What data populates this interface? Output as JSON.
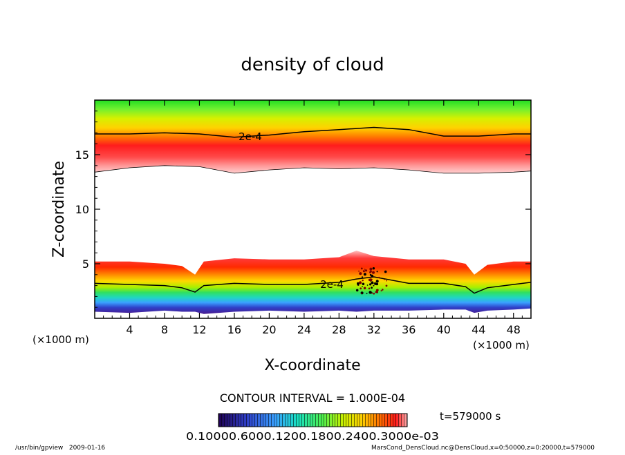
{
  "chart_data": {
    "type": "heatmap",
    "title": "density of cloud",
    "xlabel": "X-coordinate",
    "ylabel": "Z-coordinate",
    "x_unit": "(×1000 m)",
    "y_unit": "(×1000 m)",
    "xlim": [
      0,
      50
    ],
    "ylim": [
      0,
      20
    ],
    "x_ticks": [
      4,
      8,
      12,
      16,
      20,
      24,
      28,
      32,
      36,
      40,
      44,
      48
    ],
    "y_ticks": [
      5,
      10,
      15
    ],
    "contour_interval_label": "CONTOUR INTERVAL = 1.000E-04",
    "contour_label": "2e-4",
    "time_label": "t=579000 s",
    "colorbar_labels_text": "0.10000.6000.1200.1800.2400.3000e-03",
    "upper_layer": {
      "x": [
        0,
        4,
        8,
        12,
        16,
        20,
        24,
        28,
        32,
        36,
        40,
        44,
        48,
        50
      ],
      "top_z": [
        19.7,
        19.7,
        19.7,
        19.7,
        19.7,
        19.7,
        19.7,
        19.7,
        19.7,
        19.7,
        19.7,
        19.7,
        19.7,
        19.7
      ],
      "bottom_z": [
        13.4,
        13.8,
        14.0,
        13.9,
        13.3,
        13.6,
        13.8,
        13.7,
        13.8,
        13.6,
        13.3,
        13.3,
        13.4,
        13.5
      ],
      "contour_2e4_z": [
        16.9,
        16.9,
        17.0,
        16.9,
        16.6,
        16.8,
        17.1,
        17.3,
        17.5,
        17.3,
        16.7,
        16.7,
        16.9,
        16.9
      ]
    },
    "lower_layer": {
      "x": [
        0,
        4,
        8,
        10,
        11.5,
        12.5,
        16,
        20,
        24,
        28,
        30,
        32,
        36,
        40,
        42.5,
        43.5,
        45,
        48,
        50
      ],
      "top_z": [
        5.2,
        5.2,
        5.0,
        4.8,
        4.0,
        5.2,
        5.5,
        5.4,
        5.4,
        5.6,
        6.2,
        5.7,
        5.4,
        5.4,
        5.0,
        4.0,
        4.9,
        5.2,
        5.2
      ],
      "bottom_z": [
        0.6,
        0.5,
        0.7,
        0.6,
        0.6,
        0.4,
        0.6,
        0.7,
        0.6,
        0.7,
        0.6,
        0.7,
        0.7,
        0.8,
        0.8,
        0.5,
        0.7,
        0.8,
        0.9
      ],
      "contour_2e4_z": [
        3.2,
        3.1,
        3.0,
        2.8,
        2.4,
        3.0,
        3.2,
        3.1,
        3.1,
        3.3,
        3.6,
        3.8,
        3.2,
        3.2,
        2.9,
        2.3,
        2.8,
        3.1,
        3.3
      ]
    },
    "colormap": [
      "#1e0050",
      "#2f3fc8",
      "#3aa0ff",
      "#18e0c0",
      "#4ef050",
      "#c8f000",
      "#ffd000",
      "#ff6a00",
      "#ff1a1a",
      "#ffb0b0"
    ],
    "grid": false
  },
  "footer": {
    "left": "/usr/bin/gpview   2009-01-16",
    "right": "MarsCond_DensCloud.nc@DensCloud,x=0:50000,z=0:20000,t=579000"
  }
}
